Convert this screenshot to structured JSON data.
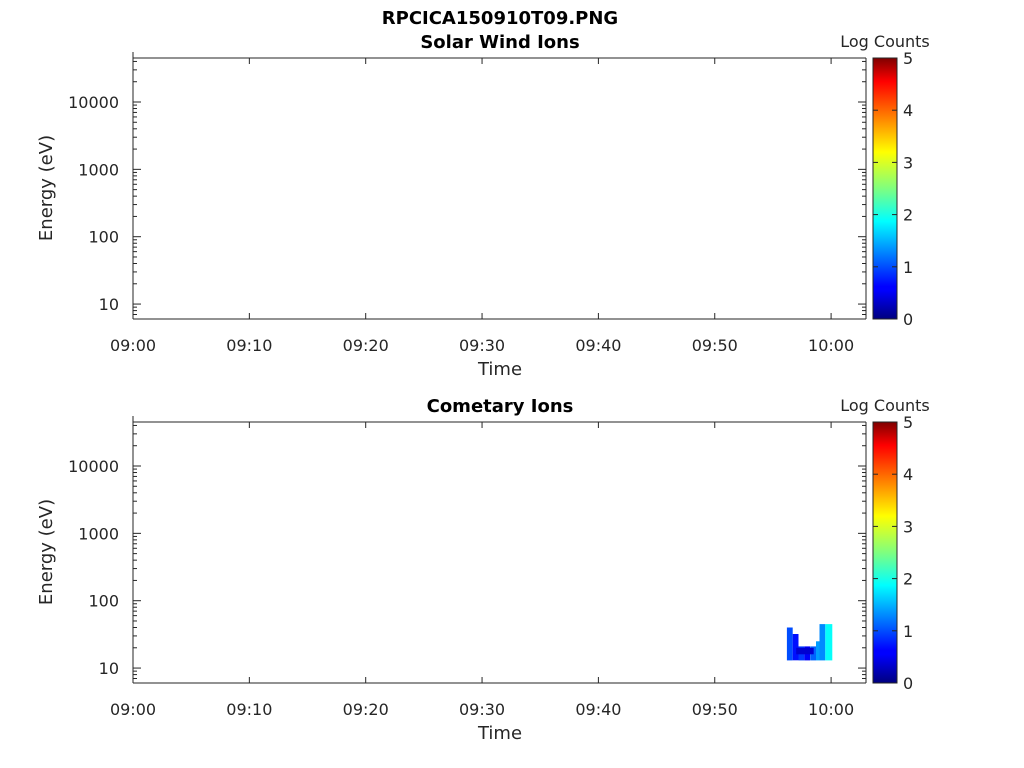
{
  "figure": {
    "title": "RPCICA150910T09.PNG"
  },
  "chart_data": [
    {
      "type": "heatmap",
      "title": "Solar Wind Ions",
      "xlabel": "Time",
      "ylabel": "Energy (eV)",
      "x_tick_labels": [
        "09:00",
        "09:10",
        "09:20",
        "09:30",
        "09:40",
        "09:50",
        "10:00"
      ],
      "x_tick_minutes": [
        0,
        10,
        20,
        30,
        40,
        50,
        60
      ],
      "xlim_minutes": [
        0,
        63
      ],
      "y_scale": "log",
      "ylim": [
        6,
        45000
      ],
      "y_tick_labels": [
        "10",
        "100",
        "1000",
        "10000"
      ],
      "y_tick_values": [
        10,
        100,
        1000,
        10000
      ],
      "colorbar": {
        "label": "Log Counts",
        "min": 0,
        "max": 5,
        "tick_labels": [
          "0",
          "1",
          "2",
          "3",
          "4",
          "5"
        ],
        "tick_values": [
          0,
          1,
          2,
          3,
          4,
          5
        ],
        "colormap": "jet"
      },
      "cells": []
    },
    {
      "type": "heatmap",
      "title": "Cometary Ions",
      "xlabel": "Time",
      "ylabel": "Energy (eV)",
      "x_tick_labels": [
        "09:00",
        "09:10",
        "09:20",
        "09:30",
        "09:40",
        "09:50",
        "10:00"
      ],
      "x_tick_minutes": [
        0,
        10,
        20,
        30,
        40,
        50,
        60
      ],
      "xlim_minutes": [
        0,
        63
      ],
      "y_scale": "log",
      "ylim": [
        6,
        45000
      ],
      "y_tick_labels": [
        "10",
        "100",
        "1000",
        "10000"
      ],
      "y_tick_values": [
        10,
        100,
        1000,
        10000
      ],
      "colorbar": {
        "label": "Log Counts",
        "min": 0,
        "max": 5,
        "tick_labels": [
          "0",
          "1",
          "2",
          "3",
          "4",
          "5"
        ],
        "tick_values": [
          0,
          1,
          2,
          3,
          4,
          5
        ],
        "colormap": "jet"
      },
      "cells": [
        {
          "t0": 56.2,
          "t1": 56.7,
          "e0": 13,
          "e1": 40,
          "v": 1.0
        },
        {
          "t0": 56.7,
          "t1": 57.2,
          "e0": 13,
          "e1": 32,
          "v": 0.7
        },
        {
          "t0": 57.2,
          "t1": 57.7,
          "e0": 13,
          "e1": 21,
          "v": 0.9
        },
        {
          "t0": 57.7,
          "t1": 58.2,
          "e0": 13,
          "e1": 21,
          "v": 0.6
        },
        {
          "t0": 58.2,
          "t1": 58.7,
          "e0": 13,
          "e1": 21,
          "v": 1.1
        },
        {
          "t0": 58.7,
          "t1": 59.0,
          "e0": 13,
          "e1": 25,
          "v": 1.4
        },
        {
          "t0": 59.0,
          "t1": 59.5,
          "e0": 13,
          "e1": 45,
          "v": 1.3
        },
        {
          "t0": 59.5,
          "t1": 60.1,
          "e0": 13,
          "e1": 45,
          "v": 1.9
        },
        {
          "t0": 57.0,
          "t1": 58.5,
          "e0": 16,
          "e1": 20,
          "v": 0.4
        }
      ]
    }
  ]
}
